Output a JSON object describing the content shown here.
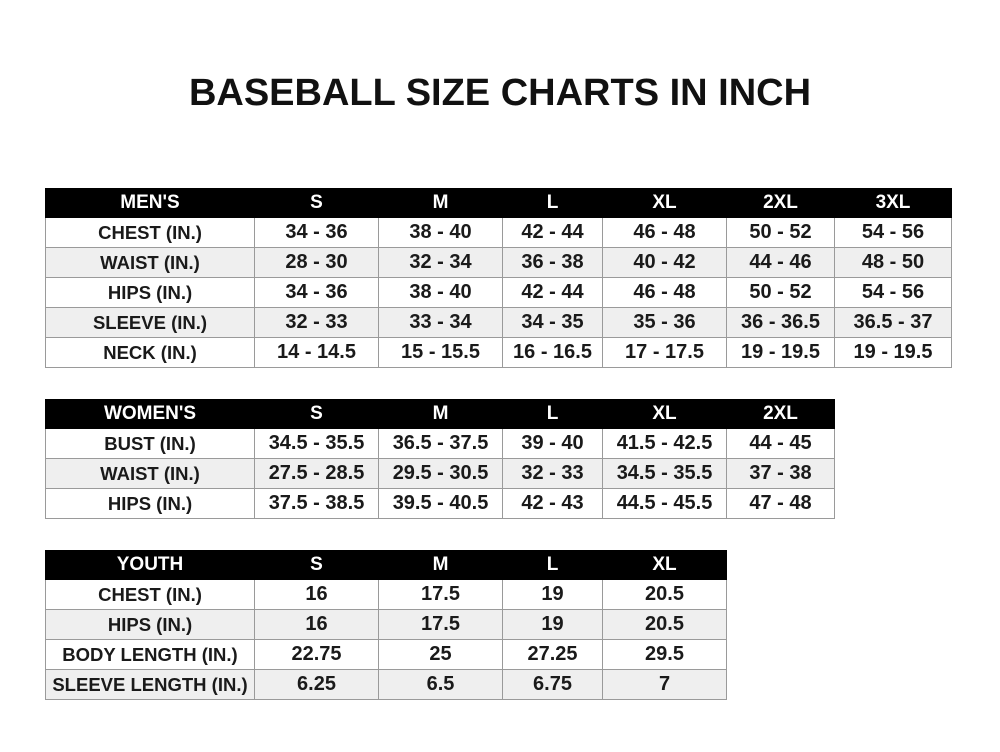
{
  "title": "BASEBALL SIZE CHARTS IN INCH",
  "tables": [
    {
      "id": "mens",
      "header": [
        "MEN'S",
        "S",
        "M",
        "L",
        "XL",
        "2XL",
        "3XL"
      ],
      "rows": [
        [
          "CHEST (IN.)",
          "34 - 36",
          "38 - 40",
          "42 - 44",
          "46 - 48",
          "50 - 52",
          "54 - 56"
        ],
        [
          "WAIST (IN.)",
          "28 - 30",
          "32 - 34",
          "36 - 38",
          "40 - 42",
          "44 - 46",
          "48 - 50"
        ],
        [
          "HIPS (IN.)",
          "34 - 36",
          "38 - 40",
          "42 - 44",
          "46 - 48",
          "50 - 52",
          "54 - 56"
        ],
        [
          "SLEEVE (IN.)",
          "32 - 33",
          "33 - 34",
          "34 - 35",
          "35 - 36",
          "36 - 36.5",
          "36.5 - 37"
        ],
        [
          "NECK (IN.)",
          "14 - 14.5",
          "15 - 15.5",
          "16 - 16.5",
          "17 - 17.5",
          "19 - 19.5",
          "19 - 19.5"
        ]
      ]
    },
    {
      "id": "womens",
      "header": [
        "WOMEN'S",
        "S",
        "M",
        "L",
        "XL",
        "2XL"
      ],
      "rows": [
        [
          "BUST (IN.)",
          "34.5 - 35.5",
          "36.5 - 37.5",
          "39 - 40",
          "41.5 - 42.5",
          "44 - 45"
        ],
        [
          "WAIST (IN.)",
          "27.5 - 28.5",
          "29.5 - 30.5",
          "32 - 33",
          "34.5 - 35.5",
          "37 - 38"
        ],
        [
          "HIPS (IN.)",
          "37.5 - 38.5",
          "39.5 - 40.5",
          "42 - 43",
          "44.5 - 45.5",
          "47 - 48"
        ]
      ]
    },
    {
      "id": "youth",
      "header": [
        "YOUTH",
        "S",
        "M",
        "L",
        "XL"
      ],
      "rows": [
        [
          "CHEST (IN.)",
          "16",
          "17.5",
          "19",
          "20.5"
        ],
        [
          "HIPS (IN.)",
          "16",
          "17.5",
          "19",
          "20.5"
        ],
        [
          "BODY LENGTH (IN.)",
          "22.75",
          "25",
          "27.25",
          "29.5"
        ],
        [
          "SLEEVE LENGTH (IN.)",
          "6.25",
          "6.5",
          "6.75",
          "7"
        ]
      ]
    }
  ]
}
